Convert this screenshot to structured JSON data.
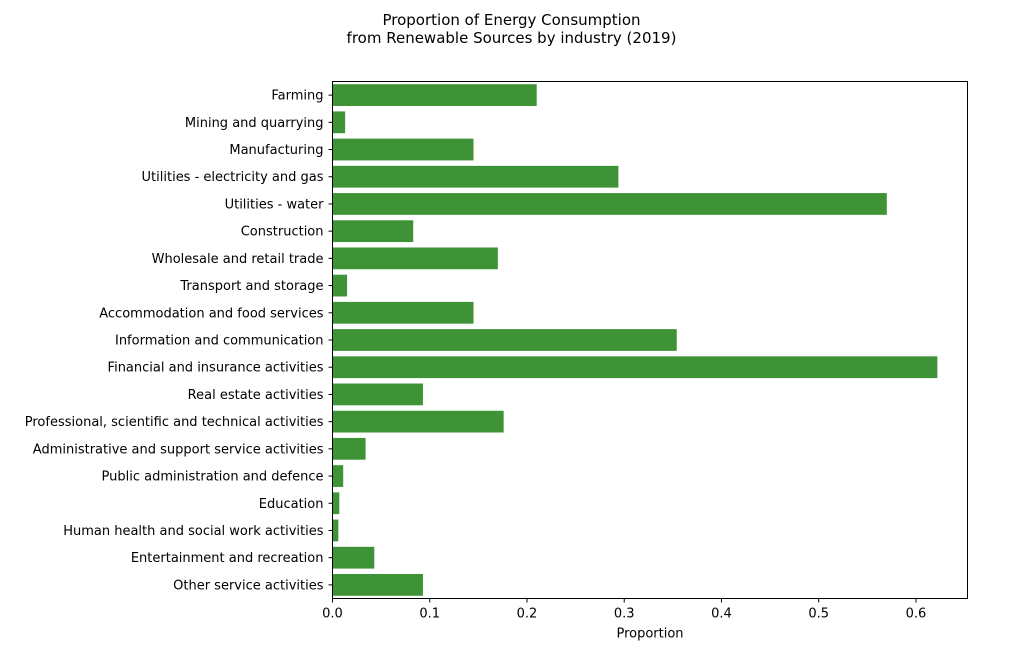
{
  "chart_data": {
    "type": "bar",
    "orientation": "horizontal",
    "title_lines": [
      "Proportion of Energy Consumption",
      "from Renewable Sources by industry (2019)"
    ],
    "xlabel": "Proportion",
    "ylabel": "",
    "xlim": [
      0.0,
      0.653
    ],
    "xticks": [
      0.0,
      0.1,
      0.2,
      0.3,
      0.4,
      0.5,
      0.6
    ],
    "xtick_labels": [
      "0.0",
      "0.1",
      "0.2",
      "0.3",
      "0.4",
      "0.5",
      "0.6"
    ],
    "grid": false,
    "bar_color": "#3e9337",
    "categories": [
      "Farming",
      "Mining and quarrying",
      "Manufacturing",
      "Utilities - electricity and gas",
      "Utilities - water",
      "Construction",
      "Wholesale and retail trade",
      "Transport and storage",
      "Accommodation and food services",
      "Information and communication",
      "Financial and insurance activities",
      "Real estate activities",
      "Professional, scientific and technical activities",
      "Administrative and support service activities",
      "Public administration and defence",
      "Education",
      "Human health and social work activities",
      "Entertainment and recreation",
      "Other service activities"
    ],
    "values": [
      0.21,
      0.013,
      0.145,
      0.294,
      0.57,
      0.083,
      0.17,
      0.015,
      0.145,
      0.354,
      0.622,
      0.093,
      0.176,
      0.034,
      0.011,
      0.007,
      0.006,
      0.043,
      0.093
    ]
  }
}
